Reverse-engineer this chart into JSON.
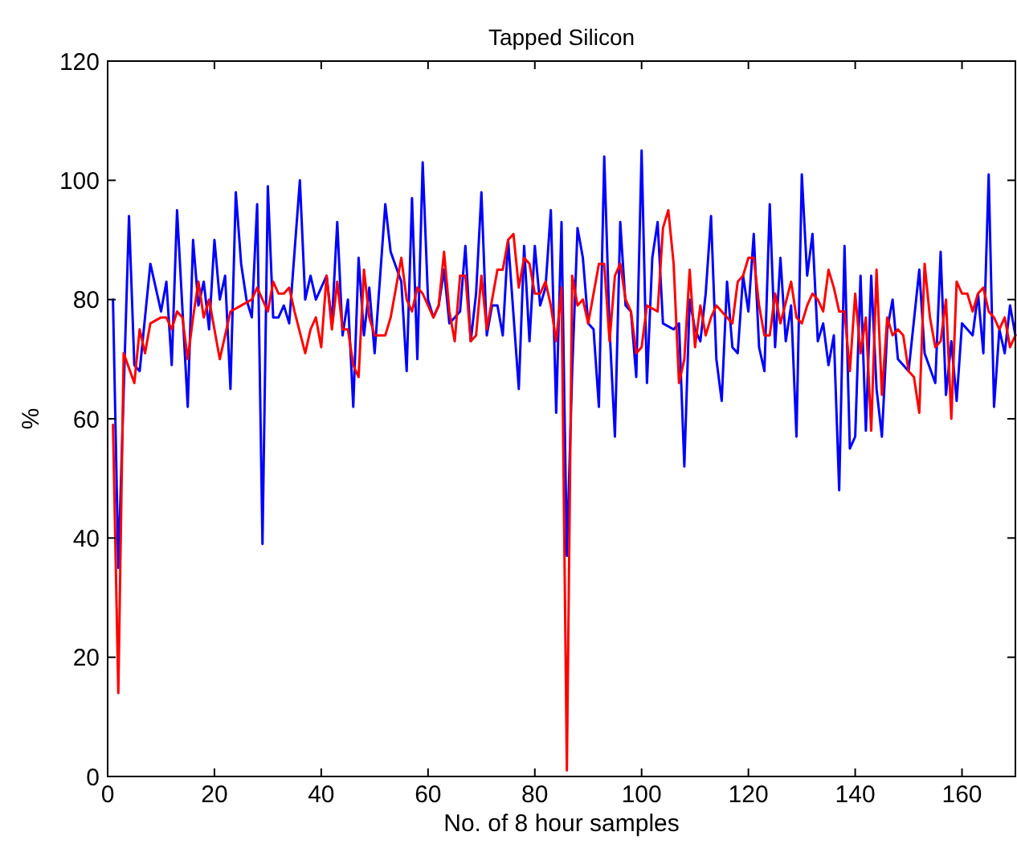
{
  "chart_data": {
    "type": "line",
    "title": "Tapped Silicon",
    "xlabel": "No. of 8 hour samples",
    "ylabel": "%",
    "xlim": [
      0,
      170
    ],
    "xticks": [
      0,
      20,
      40,
      60,
      80,
      100,
      120,
      140,
      160
    ],
    "ylim": [
      0,
      120
    ],
    "yticks": [
      0,
      20,
      40,
      60,
      80,
      100,
      120
    ],
    "grid": false,
    "line_style": "solid",
    "series": [
      {
        "color": "#0000ff",
        "x": [
          1,
          2,
          4,
          5,
          6,
          8,
          10,
          11,
          12,
          13,
          15,
          16,
          17,
          18,
          19,
          20,
          21,
          22,
          23,
          24,
          25,
          26,
          27,
          28,
          29,
          30,
          31,
          32,
          33,
          34,
          35,
          36,
          37,
          38,
          39,
          41,
          42,
          43,
          44,
          45,
          46,
          47,
          48,
          49,
          50,
          52,
          53,
          55,
          56,
          57,
          58,
          59,
          60,
          61,
          62,
          63,
          64,
          65,
          66,
          67,
          68,
          69,
          70,
          71,
          72,
          73,
          74,
          75,
          77,
          78,
          79,
          80,
          81,
          82,
          83,
          84,
          85,
          86,
          87,
          88,
          89,
          90,
          91,
          92,
          93,
          94,
          95,
          96,
          97,
          98,
          99,
          100,
          101,
          102,
          103,
          104,
          106,
          107,
          108,
          109,
          110,
          111,
          112,
          113,
          114,
          115,
          116,
          117,
          118,
          119,
          120,
          121,
          122,
          123,
          124,
          125,
          126,
          127,
          128,
          129,
          130,
          131,
          132,
          133,
          134,
          135,
          136,
          137,
          138,
          139,
          140,
          141,
          142,
          143,
          144,
          145,
          146,
          147,
          148,
          150,
          152,
          153,
          155,
          156,
          157,
          158,
          159,
          160,
          162,
          163,
          164,
          165,
          166,
          167,
          168,
          169,
          170
        ],
        "values": [
          80,
          35,
          94,
          69,
          68,
          86,
          78,
          83,
          69,
          95,
          62,
          90,
          79,
          83,
          75,
          90,
          80,
          84,
          65,
          98,
          86,
          80,
          77,
          96,
          39,
          99,
          77,
          77,
          79,
          76,
          88,
          100,
          80,
          84,
          80,
          84,
          76,
          93,
          74,
          80,
          62,
          87,
          74,
          82,
          71,
          96,
          88,
          83,
          68,
          97,
          70,
          103,
          80,
          77,
          79,
          85,
          76,
          77,
          78,
          89,
          73,
          81,
          98,
          74,
          79,
          79,
          74,
          90,
          65,
          89,
          73,
          89,
          79,
          82,
          95,
          61,
          93,
          37,
          68,
          92,
          87,
          76,
          75,
          62,
          104,
          75,
          57,
          93,
          79,
          78,
          67,
          105,
          66,
          87,
          93,
          76,
          75,
          76,
          52,
          80,
          75,
          73,
          81,
          94,
          70,
          63,
          83,
          72,
          71,
          84,
          78,
          91,
          72,
          68,
          96,
          72,
          87,
          73,
          79,
          57,
          101,
          84,
          91,
          73,
          76,
          69,
          74,
          48,
          89,
          55,
          57,
          84,
          58,
          84,
          65,
          57,
          75,
          80,
          70,
          68,
          85,
          71,
          66,
          88,
          64,
          73,
          63,
          76,
          74,
          81,
          71,
          101,
          62,
          75,
          71,
          79,
          74
        ]
      },
      {
        "color": "#ff0000",
        "x": [
          1,
          2,
          3,
          5,
          6,
          7,
          8,
          10,
          11,
          12,
          13,
          14,
          15,
          16,
          17,
          18,
          19,
          21,
          23,
          25,
          27,
          28,
          30,
          31,
          32,
          33,
          34,
          35,
          37,
          38,
          39,
          40,
          41,
          42,
          43,
          44,
          45,
          46,
          47,
          48,
          49,
          50,
          52,
          53,
          55,
          56,
          57,
          58,
          59,
          61,
          62,
          63,
          64,
          65,
          66,
          67,
          68,
          69,
          70,
          71,
          73,
          74,
          75,
          76,
          77,
          78,
          79,
          80,
          81,
          82,
          83,
          84,
          85,
          86,
          87,
          88,
          89,
          90,
          92,
          93,
          94,
          95,
          96,
          97,
          98,
          99,
          100,
          101,
          103,
          104,
          105,
          106,
          107,
          108,
          109,
          110,
          111,
          112,
          113,
          114,
          115,
          117,
          118,
          119,
          120,
          121,
          122,
          123,
          124,
          125,
          126,
          128,
          129,
          130,
          131,
          132,
          133,
          134,
          135,
          136,
          137,
          138,
          139,
          140,
          141,
          142,
          143,
          144,
          145,
          146,
          147,
          148,
          149,
          150,
          151,
          152,
          153,
          154,
          155,
          156,
          157,
          158,
          159,
          160,
          161,
          162,
          163,
          164,
          165,
          166,
          167,
          168,
          169,
          170
        ],
        "values": [
          59,
          14,
          71,
          66,
          75,
          71,
          76,
          77,
          77,
          75,
          78,
          77,
          70,
          77,
          83,
          77,
          80,
          70,
          78,
          79,
          80,
          82,
          78,
          83,
          81,
          81,
          82,
          78,
          71,
          75,
          77,
          72,
          84,
          75,
          83,
          75,
          75,
          69,
          67,
          85,
          77,
          74,
          74,
          77,
          87,
          80,
          78,
          82,
          81,
          77,
          79,
          88,
          78,
          73,
          84,
          84,
          73,
          74,
          84,
          75,
          85,
          85,
          90,
          91,
          82,
          87,
          86,
          81,
          81,
          83,
          79,
          73,
          82,
          1,
          84,
          79,
          80,
          76,
          86,
          86,
          73,
          84,
          86,
          80,
          78,
          71,
          72,
          79,
          78,
          92,
          95,
          86,
          66,
          70,
          85,
          72,
          79,
          74,
          77,
          79,
          78,
          76,
          83,
          84,
          87,
          87,
          79,
          74,
          74,
          81,
          76,
          83,
          77,
          76,
          79,
          81,
          80,
          78,
          85,
          82,
          78,
          78,
          68,
          81,
          71,
          77,
          58,
          85,
          64,
          77,
          74,
          75,
          74,
          68,
          67,
          61,
          86,
          77,
          72,
          73,
          80,
          60,
          83,
          81,
          81,
          78,
          81,
          82,
          78,
          77,
          75,
          77,
          72,
          74
        ]
      }
    ]
  }
}
